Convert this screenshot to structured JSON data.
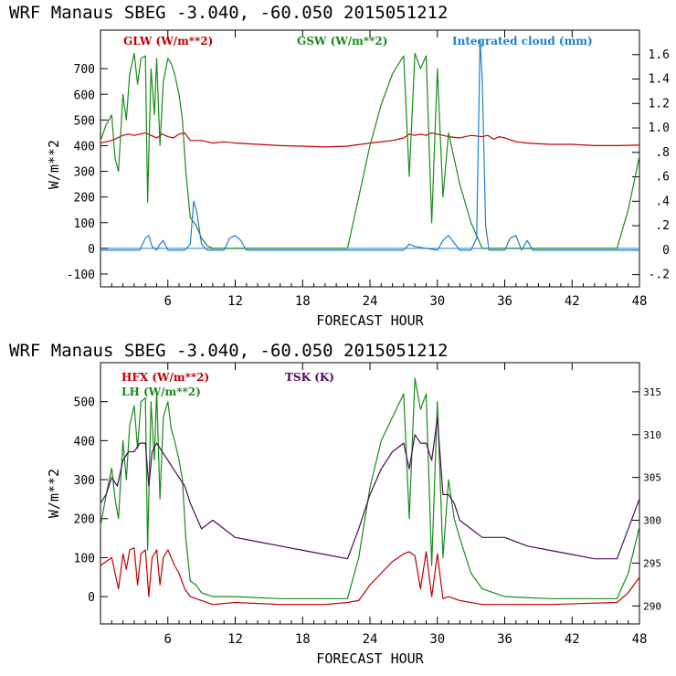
{
  "chart_data": [
    {
      "type": "line",
      "title": "WRF  Manaus SBEG   -3.040, -60.050  2015051212",
      "xlabel": "FORECAST HOUR",
      "ylabel": "W/m**2",
      "xlim": [
        0,
        48
      ],
      "ylim": [
        -150,
        850
      ],
      "x_ticks": [
        6,
        12,
        18,
        24,
        30,
        36,
        42,
        48
      ],
      "y_ticks": [
        -100,
        0,
        100,
        200,
        300,
        400,
        500,
        600,
        700
      ],
      "y2lim": [
        -0.3,
        1.8
      ],
      "y2_ticks": [
        "-.2",
        "0",
        ".2",
        ".4",
        ".6",
        ".8",
        "1.0",
        "1.2",
        "1.4",
        "1.6"
      ],
      "y2_tick_values": [
        -0.2,
        0,
        0.2,
        0.4,
        0.6,
        0.8,
        1.0,
        1.2,
        1.4,
        1.6
      ],
      "series": [
        {
          "name": "GLW (W/m**2)",
          "color": "#c00000",
          "axis": "left",
          "x": [
            0,
            0.5,
            1,
            1.5,
            2,
            2.5,
            3,
            3.5,
            4,
            4.5,
            5,
            5.5,
            6,
            6.5,
            7,
            7.5,
            8,
            9,
            10,
            11,
            12,
            14,
            16,
            18,
            20,
            22,
            24,
            26,
            27,
            27.5,
            28,
            28.5,
            29,
            29.5,
            30,
            30.5,
            31,
            32,
            33,
            34,
            34.5,
            35,
            35.5,
            36,
            37,
            38,
            40,
            42,
            44,
            46,
            48
          ],
          "values": [
            410,
            415,
            420,
            430,
            440,
            445,
            440,
            445,
            450,
            440,
            430,
            445,
            435,
            430,
            445,
            450,
            420,
            420,
            410,
            415,
            410,
            405,
            400,
            398,
            395,
            398,
            410,
            420,
            430,
            445,
            440,
            445,
            440,
            450,
            445,
            440,
            435,
            430,
            440,
            435,
            440,
            425,
            435,
            430,
            415,
            410,
            405,
            405,
            400,
            400,
            402
          ]
        },
        {
          "name": "GSW (W/m**2)",
          "color": "#1a8a1a",
          "axis": "left",
          "x": [
            0,
            0.5,
            1,
            1.3,
            1.6,
            2,
            2.3,
            2.6,
            3,
            3.3,
            3.6,
            4,
            4.2,
            4.5,
            4.8,
            5,
            5.3,
            5.6,
            6,
            6.3,
            6.6,
            7,
            7.3,
            7.6,
            8,
            8.5,
            9,
            9.5,
            10,
            12,
            16,
            20,
            22,
            23,
            24,
            25,
            26,
            27,
            27.5,
            28,
            28.5,
            29,
            29.5,
            30,
            30.5,
            31,
            31.5,
            32,
            33,
            34,
            40,
            46,
            47,
            48
          ],
          "values": [
            420,
            480,
            520,
            350,
            300,
            600,
            500,
            680,
            760,
            640,
            740,
            750,
            180,
            700,
            520,
            740,
            400,
            650,
            740,
            720,
            680,
            600,
            500,
            300,
            120,
            90,
            40,
            10,
            0,
            0,
            0,
            0,
            0,
            200,
            400,
            560,
            680,
            750,
            280,
            760,
            700,
            750,
            100,
            700,
            200,
            450,
            350,
            250,
            100,
            0,
            0,
            0,
            150,
            360
          ]
        },
        {
          "name": "Integrated cloud (mm)",
          "color": "#1e7fd0",
          "axis": "right",
          "x": [
            0,
            3.5,
            4,
            4.3,
            4.6,
            5,
            5.3,
            5.6,
            6,
            7.5,
            8,
            8.3,
            8.6,
            9,
            9.5,
            10,
            11,
            11.5,
            12,
            12.5,
            13,
            20,
            27,
            27.5,
            28,
            30,
            30.5,
            31,
            32,
            33,
            33.5,
            33.8,
            34,
            34.3,
            34.6,
            35,
            36,
            36.5,
            37,
            37.5,
            38,
            38.5,
            48
          ],
          "values": [
            0,
            0,
            0.1,
            0.12,
            0.03,
            0,
            0.05,
            0.08,
            0,
            0,
            0.05,
            0.4,
            0.3,
            0.05,
            0,
            0,
            0,
            0.1,
            0.12,
            0.08,
            0,
            0,
            0,
            0.05,
            0.03,
            0,
            0.08,
            0.12,
            0,
            0,
            0.1,
            1.72,
            1.4,
            0.2,
            0,
            0,
            0,
            0.1,
            0.12,
            0,
            0.08,
            0,
            0
          ]
        }
      ]
    },
    {
      "type": "line",
      "title": "WRF  Manaus SBEG   -3.040, -60.050  2015051212",
      "xlabel": "FORECAST HOUR",
      "ylabel": "W/m**2",
      "xlim": [
        0,
        48
      ],
      "ylim": [
        -70,
        600
      ],
      "x_ticks": [
        6,
        12,
        18,
        24,
        30,
        36,
        42,
        48
      ],
      "y_ticks": [
        0,
        100,
        200,
        300,
        400,
        500
      ],
      "y2lim": [
        287.9,
        318.4
      ],
      "y2_ticks": [
        "290",
        "295",
        "300",
        "305",
        "310",
        "315"
      ],
      "y2_tick_values": [
        290,
        295,
        300,
        305,
        310,
        315
      ],
      "series": [
        {
          "name": "HFX (W/m**2)",
          "color": "#c00000",
          "axis": "left",
          "x": [
            0,
            0.5,
            1,
            1.3,
            1.6,
            2,
            2.3,
            2.6,
            3,
            3.3,
            3.6,
            4,
            4.3,
            4.6,
            5,
            5.3,
            5.6,
            6,
            6.3,
            6.6,
            7,
            7.5,
            8,
            9,
            10,
            12,
            16,
            20,
            22,
            23,
            24,
            25,
            26,
            27,
            27.5,
            28,
            28.5,
            29,
            29.5,
            30,
            30.5,
            31,
            32,
            34,
            40,
            46,
            47,
            48
          ],
          "values": [
            80,
            90,
            100,
            60,
            20,
            110,
            70,
            120,
            125,
            30,
            110,
            120,
            0,
            100,
            120,
            30,
            100,
            120,
            100,
            80,
            60,
            20,
            0,
            -10,
            -20,
            -15,
            -20,
            -20,
            -15,
            -10,
            30,
            60,
            90,
            110,
            115,
            105,
            20,
            115,
            0,
            110,
            -5,
            0,
            -10,
            -20,
            -20,
            -15,
            10,
            50
          ]
        },
        {
          "name": "LH  (W/m**2)",
          "color": "#1a8a1a",
          "axis": "left",
          "x": [
            0,
            0.5,
            1,
            1.3,
            1.6,
            2,
            2.3,
            2.6,
            3,
            3.3,
            3.6,
            4,
            4.2,
            4.5,
            4.8,
            5,
            5.3,
            5.6,
            6,
            6.3,
            6.6,
            7,
            7.3,
            7.6,
            8,
            8.5,
            9,
            9.5,
            10,
            12,
            16,
            20,
            22,
            23,
            24,
            25,
            26,
            27,
            27.5,
            28,
            28.5,
            29,
            29.5,
            30,
            30.5,
            31,
            31.5,
            32,
            33,
            34,
            36,
            40,
            46,
            47,
            48
          ],
          "values": [
            180,
            260,
            330,
            250,
            200,
            400,
            300,
            440,
            490,
            380,
            500,
            510,
            120,
            500,
            350,
            530,
            250,
            460,
            500,
            430,
            400,
            350,
            300,
            150,
            40,
            30,
            10,
            5,
            0,
            0,
            -5,
            -5,
            -5,
            100,
            280,
            400,
            460,
            520,
            200,
            560,
            480,
            520,
            80,
            500,
            100,
            300,
            200,
            150,
            60,
            20,
            0,
            -5,
            -5,
            60,
            180
          ]
        },
        {
          "name": "TSK (K)",
          "color": "#4b0a5a",
          "axis": "right",
          "x": [
            0,
            0.5,
            1,
            1.5,
            2,
            2.5,
            3,
            3.5,
            4,
            4.3,
            4.6,
            5,
            5.5,
            6,
            6.5,
            7,
            7.5,
            8,
            9,
            10,
            11,
            12,
            14,
            16,
            18,
            20,
            22,
            23,
            24,
            25,
            26,
            27,
            27.5,
            28,
            28.5,
            29,
            29.5,
            30,
            30.5,
            31,
            31.5,
            32,
            33,
            34,
            36,
            38,
            40,
            42,
            44,
            46,
            47,
            48
          ],
          "values": [
            302,
            303,
            305,
            304,
            307,
            308,
            308,
            309,
            309,
            304,
            308,
            309,
            308,
            307,
            306,
            305,
            304,
            302,
            299,
            300,
            299,
            298,
            297.5,
            297,
            296.5,
            296,
            295.5,
            299,
            303,
            306,
            308,
            309,
            306,
            310,
            309,
            309,
            307,
            312,
            303,
            303,
            302,
            300,
            299,
            298,
            298,
            297,
            296.5,
            296,
            295.5,
            295.5,
            299,
            302.5
          ]
        }
      ]
    }
  ]
}
